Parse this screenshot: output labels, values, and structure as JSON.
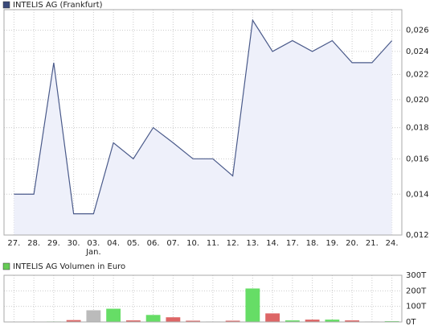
{
  "chart_data": [
    {
      "type": "line",
      "title": "INTELIS AG (Frankfurt)",
      "legend_color": "#3a4a7a",
      "categories": [
        "27.",
        "28.",
        "29.",
        "30.",
        "03.",
        "04.",
        "05.",
        "06.",
        "07.",
        "10.",
        "11.",
        "12.",
        "13.",
        "14.",
        "17.",
        "18.",
        "19.",
        "20.",
        "21.",
        "24."
      ],
      "annotations": [
        {
          "text": "Jan.",
          "category": 4
        }
      ],
      "series": [
        {
          "name": "INTELIS AG (Frankfurt)",
          "color": "#4a5a8a",
          "fill": "#eef0fa",
          "values": [
            0.014,
            0.014,
            0.023,
            0.013,
            0.013,
            0.017,
            0.016,
            0.018,
            0.017,
            0.016,
            0.016,
            0.015,
            0.027,
            0.024,
            0.025,
            0.024,
            0.025,
            0.023,
            0.023,
            0.025
          ]
        }
      ],
      "ylim": [
        0.012,
        0.0281
      ],
      "log_scale": true,
      "grid": true,
      "yticks": [
        {
          "value": 0.012,
          "label": "0,012"
        },
        {
          "value": 0.014,
          "label": "0,014"
        },
        {
          "value": 0.016,
          "label": "0,016"
        },
        {
          "value": 0.018,
          "label": "0,018"
        },
        {
          "value": 0.02,
          "label": "0,020"
        },
        {
          "value": 0.022,
          "label": "0,022"
        },
        {
          "value": 0.024,
          "label": "0,024"
        },
        {
          "value": 0.026,
          "label": "0,026"
        }
      ]
    },
    {
      "type": "bar",
      "title": "INTELIS AG Volumen in Euro",
      "legend_color": "#66cc55",
      "categories": [
        "27.",
        "28.",
        "29.",
        "30.",
        "03.",
        "04.",
        "05.",
        "06.",
        "07.",
        "10.",
        "11.",
        "12.",
        "13.",
        "14.",
        "17.",
        "18.",
        "19.",
        "20.",
        "21.",
        "24."
      ],
      "values": [
        0,
        0,
        3000,
        12000,
        75000,
        85000,
        10000,
        45000,
        30000,
        8000,
        3000,
        8000,
        215000,
        55000,
        10000,
        15000,
        15000,
        10000,
        3000,
        5000
      ],
      "colors": [
        "#bbbbbb",
        "#bbbbbb",
        "#66dd66",
        "#dd6666",
        "#bbbbbb",
        "#66dd66",
        "#dd6666",
        "#66dd66",
        "#dd6666",
        "#dd6666",
        "#bbbbbb",
        "#dd6666",
        "#66dd66",
        "#dd6666",
        "#66dd66",
        "#dd6666",
        "#66dd66",
        "#dd6666",
        "#bbbbbb",
        "#66dd66"
      ],
      "ylim": [
        0,
        300000
      ],
      "grid": true,
      "yticks": [
        {
          "value": 0,
          "label": "0T"
        },
        {
          "value": 100000,
          "label": "100T"
        },
        {
          "value": 200000,
          "label": "200T"
        },
        {
          "value": 300000,
          "label": "300T"
        }
      ]
    }
  ]
}
